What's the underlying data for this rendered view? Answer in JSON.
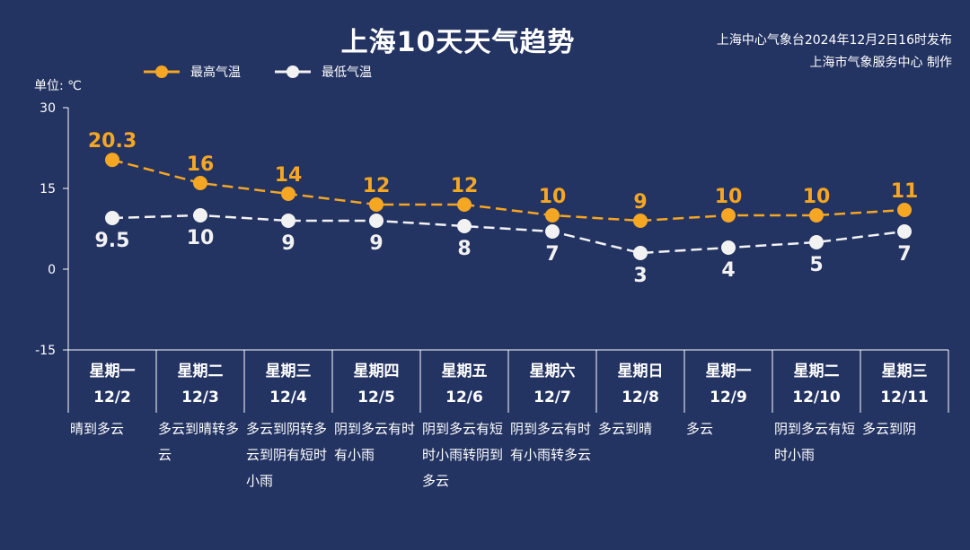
{
  "header": {
    "title": "上海10天天气趋势",
    "source_line1": "上海中心气象台2024年12月2日16时发布",
    "source_line2": "上海市气象服务中心 制作"
  },
  "unit_label": "单位: ℃",
  "colors": {
    "background": "#233362",
    "high": "#f5a623",
    "low": "#f2f2f2",
    "axis": "#ffffff"
  },
  "chart_data": {
    "type": "line",
    "title": "上海10天天气趋势",
    "ylabel": "单位: ℃",
    "ylim": [
      -15,
      30
    ],
    "yticks": [
      30,
      15,
      0,
      -15
    ],
    "legend": "top-left",
    "categories": [
      "12/2",
      "12/3",
      "12/4",
      "12/5",
      "12/6",
      "12/7",
      "12/8",
      "12/9",
      "12/10",
      "12/11"
    ],
    "series": [
      {
        "name": "最高气温",
        "color": "#f5a623",
        "values": [
          20.3,
          16,
          14,
          12,
          12,
          10,
          9,
          10,
          10,
          11
        ]
      },
      {
        "name": "最低气温",
        "color": "#f2f2f2",
        "values": [
          9.5,
          10,
          9,
          9,
          8,
          7,
          3,
          4,
          5,
          7
        ]
      }
    ]
  },
  "days": [
    {
      "weekday": "星期一",
      "date": "12/2",
      "weather": "晴到多云"
    },
    {
      "weekday": "星期二",
      "date": "12/3",
      "weather": "多云到晴转多云"
    },
    {
      "weekday": "星期三",
      "date": "12/4",
      "weather": "多云到阴转多云到阴有短时小雨"
    },
    {
      "weekday": "星期四",
      "date": "12/5",
      "weather": "阴到多云有时有小雨"
    },
    {
      "weekday": "星期五",
      "date": "12/6",
      "weather": "阴到多云有短时小雨转阴到多云"
    },
    {
      "weekday": "星期六",
      "date": "12/7",
      "weather": "阴到多云有时有小雨转多云"
    },
    {
      "weekday": "星期日",
      "date": "12/8",
      "weather": "多云到晴"
    },
    {
      "weekday": "星期一",
      "date": "12/9",
      "weather": "多云"
    },
    {
      "weekday": "星期二",
      "date": "12/10",
      "weather": "阴到多云有短时小雨"
    },
    {
      "weekday": "星期三",
      "date": "12/11",
      "weather": "多云到阴"
    }
  ]
}
